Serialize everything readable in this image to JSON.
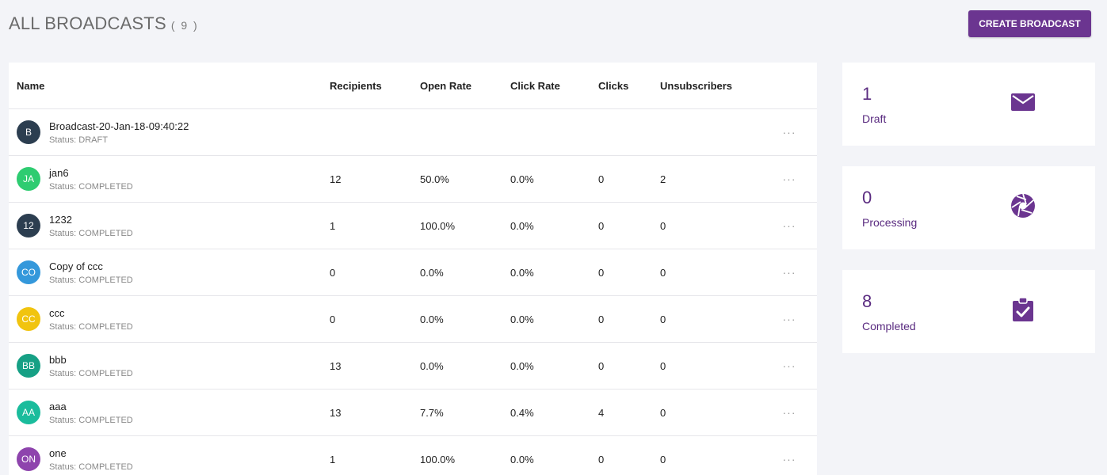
{
  "header": {
    "title": "ALL BROADCASTS",
    "count": "( 9 )",
    "create_button": "CREATE BROADCAST"
  },
  "table": {
    "columns": [
      "Name",
      "Recipients",
      "Open Rate",
      "Click Rate",
      "Clicks",
      "Unsubscribers"
    ],
    "rows": [
      {
        "initials": "B",
        "color": "#2c3e50",
        "name": "Broadcast-20-Jan-18-09:40:22",
        "status": "Status: DRAFT",
        "recipients": "",
        "open_rate": "",
        "click_rate": "",
        "clicks": "",
        "unsubscribers": "",
        "more": "···"
      },
      {
        "initials": "JA",
        "color": "#2ecc71",
        "name": "jan6",
        "status": "Status: COMPLETED",
        "recipients": "12",
        "open_rate": "50.0%",
        "click_rate": "0.0%",
        "clicks": "0",
        "unsubscribers": "2",
        "more": "···"
      },
      {
        "initials": "12",
        "color": "#2c3e50",
        "name": "1232",
        "status": "Status: COMPLETED",
        "recipients": "1",
        "open_rate": "100.0%",
        "click_rate": "0.0%",
        "clicks": "0",
        "unsubscribers": "0",
        "more": "···"
      },
      {
        "initials": "CO",
        "color": "#3498db",
        "name": "Copy of ccc",
        "status": "Status: COMPLETED",
        "recipients": "0",
        "open_rate": "0.0%",
        "click_rate": "0.0%",
        "clicks": "0",
        "unsubscribers": "0",
        "more": "···"
      },
      {
        "initials": "CC",
        "color": "#f1c40f",
        "name": "ccc",
        "status": "Status: COMPLETED",
        "recipients": "0",
        "open_rate": "0.0%",
        "click_rate": "0.0%",
        "clicks": "0",
        "unsubscribers": "0",
        "more": "···"
      },
      {
        "initials": "BB",
        "color": "#16a085",
        "name": "bbb",
        "status": "Status: COMPLETED",
        "recipients": "13",
        "open_rate": "0.0%",
        "click_rate": "0.0%",
        "clicks": "0",
        "unsubscribers": "0",
        "more": "···"
      },
      {
        "initials": "AA",
        "color": "#1abc9c",
        "name": "aaa",
        "status": "Status: COMPLETED",
        "recipients": "13",
        "open_rate": "7.7%",
        "click_rate": "0.4%",
        "clicks": "4",
        "unsubscribers": "0",
        "more": "···"
      },
      {
        "initials": "ON",
        "color": "#8e44ad",
        "name": "one",
        "status": "Status: COMPLETED",
        "recipients": "1",
        "open_rate": "100.0%",
        "click_rate": "0.0%",
        "clicks": "0",
        "unsubscribers": "0",
        "more": "···"
      }
    ]
  },
  "stats": [
    {
      "value": "1",
      "label": "Draft",
      "icon": "envelope-icon"
    },
    {
      "value": "0",
      "label": "Processing",
      "icon": "aperture-icon"
    },
    {
      "value": "8",
      "label": "Completed",
      "icon": "clipboard-check-icon"
    }
  ],
  "colors": {
    "accent": "#6b3590",
    "stat_text": "#5a2b80",
    "background": "#f3f4f8"
  }
}
